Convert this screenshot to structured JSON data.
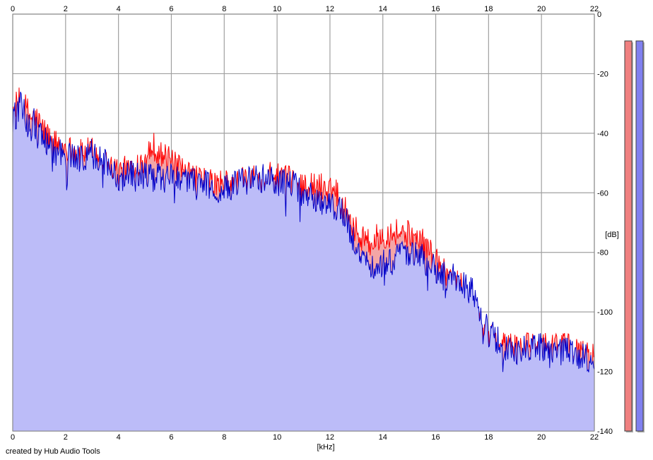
{
  "chart_data": {
    "type": "area",
    "title": "",
    "xlabel": "[kHz]",
    "ylabel": "[dB]",
    "credit": "created by Hub Audio Tools",
    "xlim": [
      0,
      22
    ],
    "ylim": [
      -140,
      0
    ],
    "x_ticks": [
      0,
      2,
      4,
      6,
      8,
      10,
      12,
      14,
      16,
      18,
      20,
      22
    ],
    "y_ticks": [
      0,
      -20,
      -40,
      -60,
      -80,
      -100,
      -120,
      -140
    ],
    "grid": true,
    "y_axis_position": "right",
    "x_axis_position": "top-and-bottom",
    "series": [
      {
        "color": "#ff0000",
        "fill": "#f4a6a6",
        "x": [
          0,
          0.3,
          0.6,
          1.0,
          1.5,
          2.0,
          2.5,
          3.0,
          3.5,
          4.0,
          4.5,
          5.0,
          5.3,
          5.6,
          6.0,
          6.5,
          7.0,
          7.5,
          8.0,
          8.5,
          9.0,
          9.5,
          10.0,
          10.5,
          11.0,
          11.5,
          12.0,
          12.3,
          12.6,
          13.0,
          13.5,
          14.0,
          14.5,
          15.0,
          15.5,
          16.0,
          16.3,
          16.6,
          17.0,
          17.4,
          17.6,
          18.0,
          18.5,
          19.0,
          19.5,
          20.0,
          20.5,
          21.0,
          21.5,
          22.0
        ],
        "values": [
          -33,
          -30,
          -34,
          -37,
          -43,
          -45,
          -47,
          -46,
          -50,
          -53,
          -52,
          -48,
          -44,
          -47,
          -50,
          -54,
          -55,
          -57,
          -57,
          -57,
          -55,
          -54,
          -55,
          -56,
          -58,
          -58,
          -58,
          -60,
          -66,
          -73,
          -77,
          -74,
          -73,
          -74,
          -77,
          -82,
          -86,
          -88,
          -92,
          -98,
          -104,
          -109,
          -111,
          -112,
          -112,
          -111,
          -111,
          -112,
          -114,
          -115
        ]
      },
      {
        "color": "#0000c8",
        "fill": "#bcbcf8",
        "x": [
          0,
          0.3,
          0.6,
          1.0,
          1.5,
          2.0,
          2.5,
          3.0,
          3.5,
          4.0,
          4.5,
          5.0,
          5.3,
          5.6,
          6.0,
          6.5,
          7.0,
          7.5,
          8.0,
          8.5,
          9.0,
          9.5,
          10.0,
          10.5,
          11.0,
          11.5,
          12.0,
          12.3,
          12.6,
          13.0,
          13.5,
          14.0,
          14.5,
          15.0,
          15.5,
          16.0,
          16.3,
          16.6,
          17.0,
          17.4,
          17.6,
          18.0,
          18.5,
          19.0,
          19.5,
          20.0,
          20.5,
          21.0,
          21.5,
          22.0
        ],
        "values": [
          -35,
          -32,
          -36,
          -39,
          -46,
          -47,
          -49,
          -46,
          -50,
          -55,
          -54,
          -54,
          -55,
          -55,
          -55,
          -56,
          -56,
          -58,
          -59,
          -57,
          -56,
          -55,
          -56,
          -57,
          -60,
          -62,
          -63,
          -65,
          -69,
          -79,
          -84,
          -84,
          -82,
          -80,
          -82,
          -86,
          -88,
          -88,
          -91,
          -93,
          -100,
          -107,
          -111,
          -113,
          -113,
          -112,
          -113,
          -113,
          -115,
          -115
        ]
      }
    ],
    "level_meters": [
      {
        "color": "#f08080",
        "value": -9
      },
      {
        "color": "#8080f0",
        "value": -9
      }
    ]
  }
}
